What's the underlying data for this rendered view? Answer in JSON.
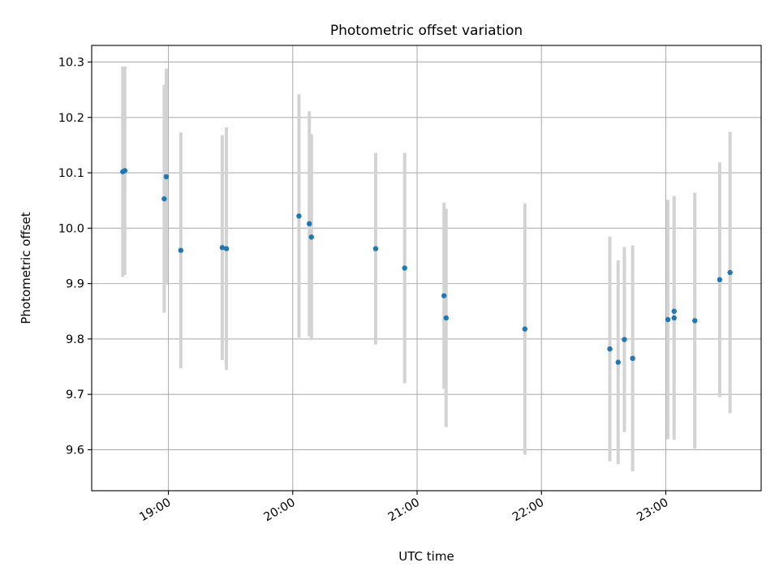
{
  "chart_data": {
    "type": "scatter",
    "title": "Photometric offset variation",
    "xlabel": "UTC time",
    "ylabel": "Photometric offset",
    "x_is_time": true,
    "xlim": [
      "18:23",
      "23:46"
    ],
    "ylim": [
      9.526,
      10.33
    ],
    "grid": true,
    "x_ticks": [
      "19:00",
      "20:00",
      "21:00",
      "22:00",
      "23:00"
    ],
    "y_ticks": [
      "9.6",
      "9.7",
      "9.8",
      "9.9",
      "10.0",
      "10.1",
      "10.2",
      "10.3"
    ],
    "colors": {
      "point": "#1f77b4",
      "errorbar": "#d3d3d3",
      "grid": "#b0b0b0"
    },
    "points": [
      {
        "x": "18:38",
        "y": 10.102,
        "yerr": 0.19
      },
      {
        "x": "18:39",
        "y": 10.104,
        "yerr": 0.188
      },
      {
        "x": "18:58",
        "y": 10.053,
        "yerr": 0.206
      },
      {
        "x": "18:59",
        "y": 10.093,
        "yerr": 0.195
      },
      {
        "x": "19:06",
        "y": 9.96,
        "yerr": 0.213
      },
      {
        "x": "19:26",
        "y": 9.965,
        "yerr": 0.203
      },
      {
        "x": "19:28",
        "y": 9.963,
        "yerr": 0.219
      },
      {
        "x": "20:03",
        "y": 10.022,
        "yerr": 0.22
      },
      {
        "x": "20:08",
        "y": 10.008,
        "yerr": 0.203
      },
      {
        "x": "20:09",
        "y": 9.984,
        "yerr": 0.186
      },
      {
        "x": "20:40",
        "y": 9.963,
        "yerr": 0.173
      },
      {
        "x": "20:54",
        "y": 9.928,
        "yerr": 0.208
      },
      {
        "x": "21:13",
        "y": 9.878,
        "yerr": 0.168
      },
      {
        "x": "21:14",
        "y": 9.838,
        "yerr": 0.197
      },
      {
        "x": "21:52",
        "y": 9.818,
        "yerr": 0.227
      },
      {
        "x": "22:33",
        "y": 9.782,
        "yerr": 0.203
      },
      {
        "x": "22:37",
        "y": 9.758,
        "yerr": 0.184
      },
      {
        "x": "22:40",
        "y": 9.799,
        "yerr": 0.167
      },
      {
        "x": "22:44",
        "y": 9.765,
        "yerr": 0.204
      },
      {
        "x": "23:01",
        "y": 9.835,
        "yerr": 0.216
      },
      {
        "x": "23:04",
        "y": 9.85,
        "yerr": 0.208
      },
      {
        "x": "23:04",
        "y": 9.838,
        "yerr": 0.22
      },
      {
        "x": "23:14",
        "y": 9.833,
        "yerr": 0.231
      },
      {
        "x": "23:26",
        "y": 9.907,
        "yerr": 0.212
      },
      {
        "x": "23:31",
        "y": 9.92,
        "yerr": 0.254
      }
    ]
  }
}
